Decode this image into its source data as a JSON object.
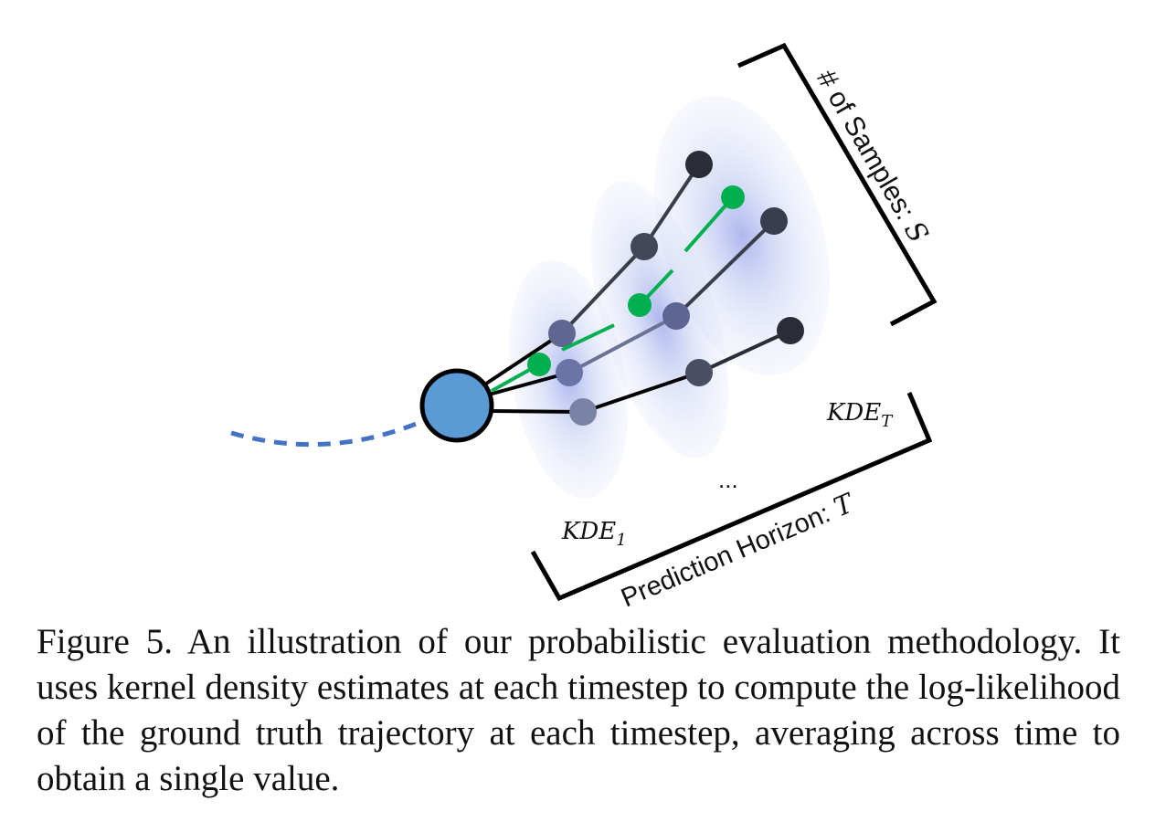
{
  "diagram": {
    "label_samples": "# of Samples: ",
    "label_samples_var": "S",
    "label_horizon": "Prediction Horizon: ",
    "label_horizon_var": "T",
    "kde_first_base": "KDE",
    "kde_first_sub": "1",
    "kde_last_base": "KDE",
    "kde_last_sub": "T",
    "ellipsis": "...",
    "colors": {
      "agent_fill": "#5b9bd5",
      "past_path": "#4472c4",
      "ground_truth": "#00b050",
      "sample_dark": "#2a2d38",
      "kde_blob": "#6d7fe0"
    }
  },
  "caption": {
    "text": "Figure 5. An illustration of our probabilistic evaluation methodology. It uses kernel density estimates at each timestep to compute the log-likelihood of the ground truth trajectory at each timestep, averaging across time to obtain a single value."
  }
}
